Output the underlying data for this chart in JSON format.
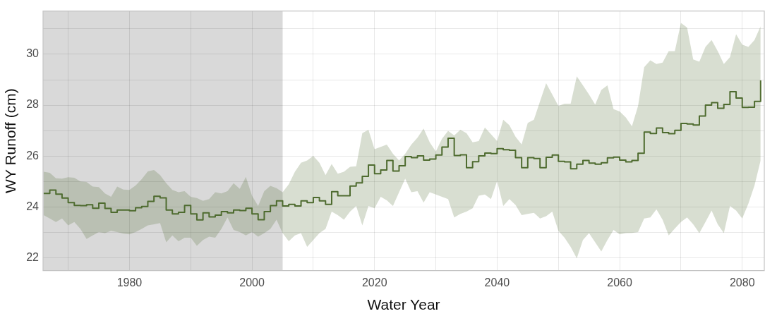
{
  "chart_data": {
    "type": "step",
    "xlabel": "Water Year",
    "ylabel": "WY Runoff (cm)",
    "x": [
      1966,
      1967,
      1968,
      1969,
      1970,
      1971,
      1972,
      1973,
      1974,
      1975,
      1976,
      1977,
      1978,
      1979,
      1980,
      1981,
      1982,
      1983,
      1984,
      1985,
      1986,
      1987,
      1988,
      1989,
      1990,
      1991,
      1992,
      1993,
      1994,
      1995,
      1996,
      1997,
      1998,
      1999,
      2000,
      2001,
      2002,
      2003,
      2004,
      2005,
      2006,
      2007,
      2008,
      2009,
      2010,
      2011,
      2012,
      2013,
      2014,
      2015,
      2016,
      2017,
      2018,
      2019,
      2020,
      2021,
      2022,
      2023,
      2024,
      2025,
      2026,
      2027,
      2028,
      2029,
      2030,
      2031,
      2032,
      2033,
      2034,
      2035,
      2036,
      2037,
      2038,
      2039,
      2040,
      2041,
      2042,
      2043,
      2044,
      2045,
      2046,
      2047,
      2048,
      2049,
      2050,
      2051,
      2052,
      2053,
      2054,
      2055,
      2056,
      2057,
      2058,
      2059,
      2060,
      2061,
      2062,
      2063,
      2064,
      2065,
      2066,
      2067,
      2068,
      2069,
      2070,
      2071,
      2072,
      2073,
      2074,
      2075,
      2076,
      2077,
      2078,
      2079,
      2080,
      2081,
      2082,
      2083
    ],
    "series": [
      {
        "color": "#4e6b2f",
        "values": [
          24.53,
          24.66,
          24.5,
          24.35,
          24.17,
          24.06,
          24.05,
          24.09,
          23.95,
          24.15,
          23.94,
          23.79,
          23.88,
          23.88,
          23.85,
          23.97,
          24.02,
          24.22,
          24.42,
          24.36,
          23.88,
          23.73,
          23.79,
          24.06,
          23.73,
          23.49,
          23.77,
          23.61,
          23.68,
          23.82,
          23.77,
          23.88,
          23.86,
          23.95,
          23.73,
          23.5,
          23.82,
          24.05,
          24.24,
          24.04,
          24.1,
          24.04,
          24.24,
          24.17,
          24.37,
          24.24,
          24.1,
          24.6,
          24.44,
          24.44,
          24.82,
          24.95,
          25.2,
          25.65,
          25.31,
          25.45,
          25.83,
          25.41,
          25.62,
          25.98,
          25.94,
          26.01,
          25.84,
          25.88,
          26.04,
          26.35,
          26.7,
          26.02,
          26.05,
          25.54,
          25.78,
          26.01,
          26.12,
          26.1,
          26.29,
          26.25,
          26.23,
          25.94,
          25.54,
          25.94,
          25.9,
          25.54,
          25.95,
          26.04,
          25.79,
          25.77,
          25.5,
          25.68,
          25.83,
          25.72,
          25.68,
          25.74,
          25.93,
          25.96,
          25.84,
          25.77,
          25.83,
          26.11,
          26.94,
          26.89,
          27.1,
          26.92,
          26.88,
          27.01,
          27.28,
          27.26,
          27.22,
          27.57,
          28.0,
          28.1,
          27.88,
          28.03,
          28.53,
          28.28,
          27.91,
          27.92,
          28.15,
          28.97
        ],
        "lower": [
          23.68,
          23.55,
          23.41,
          23.55,
          23.28,
          23.41,
          23.14,
          22.74,
          22.88,
          23.01,
          22.97,
          23.06,
          23.01,
          22.95,
          22.92,
          23.01,
          23.14,
          23.28,
          23.32,
          23.37,
          22.61,
          22.88,
          22.65,
          22.79,
          22.79,
          22.47,
          22.7,
          22.83,
          22.79,
          23.14,
          23.59,
          23.1,
          23.01,
          22.88,
          23.01,
          22.83,
          22.97,
          23.14,
          23.5,
          22.97,
          22.65,
          22.88,
          22.97,
          22.43,
          22.7,
          22.97,
          23.14,
          23.82,
          23.68,
          23.5,
          23.82,
          24.04,
          23.28,
          24.04,
          23.95,
          24.4,
          24.26,
          24.04,
          24.58,
          25.11,
          24.58,
          24.62,
          24.17,
          24.58,
          24.49,
          24.4,
          24.31,
          23.59,
          23.73,
          23.82,
          23.95,
          24.44,
          24.49,
          24.31,
          25.02,
          24.04,
          24.31,
          24.08,
          23.68,
          23.73,
          23.77,
          23.55,
          23.64,
          23.82,
          23.06,
          22.79,
          22.43,
          21.98,
          22.7,
          22.97,
          22.61,
          22.25,
          22.7,
          23.1,
          22.92,
          22.97,
          22.98,
          23.01,
          23.55,
          23.59,
          23.91,
          23.5,
          22.88,
          23.15,
          23.41,
          23.59,
          23.32,
          22.97,
          23.41,
          23.86,
          23.32,
          22.97,
          24.04,
          23.86,
          23.55,
          24.13,
          24.84,
          25.83
        ],
        "upper": [
          25.38,
          25.34,
          25.13,
          25.11,
          25.17,
          25.15,
          25.0,
          24.98,
          24.8,
          24.78,
          24.53,
          24.4,
          24.8,
          24.68,
          24.67,
          24.84,
          25.09,
          25.4,
          25.45,
          25.25,
          24.93,
          24.67,
          24.58,
          24.62,
          24.4,
          24.35,
          24.24,
          24.31,
          24.58,
          24.53,
          24.62,
          24.93,
          24.71,
          25.18,
          24.44,
          24.04,
          24.62,
          24.83,
          24.74,
          24.58,
          24.89,
          25.38,
          25.74,
          25.83,
          26.01,
          25.74,
          25.25,
          25.69,
          25.31,
          25.38,
          25.58,
          25.6,
          26.9,
          27.03,
          26.27,
          26.36,
          26.45,
          26.09,
          25.83,
          26.09,
          26.45,
          26.72,
          27.08,
          26.54,
          26.18,
          26.68,
          26.99,
          26.81,
          27.03,
          26.9,
          26.54,
          26.59,
          27.12,
          26.86,
          26.59,
          27.43,
          27.21,
          26.76,
          26.46,
          27.3,
          27.43,
          28.15,
          28.86,
          28.42,
          27.97,
          28.06,
          28.06,
          29.13,
          28.78,
          28.42,
          28.02,
          28.6,
          28.78,
          27.84,
          27.75,
          27.52,
          27.17,
          27.97,
          29.49,
          29.76,
          29.62,
          29.67,
          30.12,
          30.12,
          31.23,
          31.05,
          29.8,
          29.71,
          30.29,
          30.56,
          30.12,
          29.62,
          29.89,
          30.79,
          30.38,
          30.29,
          30.56,
          31.1
        ]
      }
    ],
    "xlim": [
      1965.9,
      2083.6
    ],
    "xticks": [
      {
        "value": 1970,
        "label": null
      },
      1980,
      {
        "value": 1990,
        "label": null
      },
      2000,
      {
        "value": 2010,
        "label": null
      },
      2020,
      {
        "value": 2030,
        "label": null
      },
      2040,
      {
        "value": 2050,
        "label": null
      },
      2060,
      {
        "value": 2070,
        "label": null
      },
      2080
    ],
    "ylim": [
      21.5,
      31.7
    ],
    "yticks": [
      22,
      {
        "value": 23,
        "label": null
      },
      24,
      {
        "value": 25,
        "label": null
      },
      26,
      {
        "value": 27,
        "label": null
      },
      28,
      {
        "value": 29,
        "label": null
      },
      30,
      {
        "value": 31,
        "label": null
      }
    ],
    "bands": [
      {
        "axis": "x",
        "from": 1965.9,
        "to": 2005,
        "color": "#d9d9d9"
      }
    ],
    "grid": true,
    "legend": false
  }
}
